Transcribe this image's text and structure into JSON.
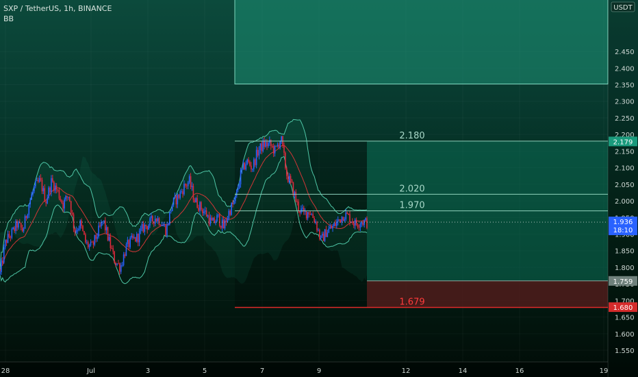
{
  "legend": {
    "symbol_line": "SXP / TetherUS, 1h, BINANCE",
    "indicator": "BB"
  },
  "price_axis": {
    "unit_tag": "USDT",
    "ticks": [
      "2.450",
      "2.400",
      "2.350",
      "2.300",
      "2.250",
      "2.200",
      "2.150",
      "2.100",
      "2.050",
      "2.000",
      "1.950",
      "1.900",
      "1.850",
      "1.800",
      "1.750",
      "1.700",
      "1.650",
      "1.600",
      "1.550"
    ],
    "tick_values": [
      2.45,
      2.4,
      2.35,
      2.3,
      2.25,
      2.2,
      2.15,
      2.1,
      2.05,
      2.0,
      1.95,
      1.9,
      1.85,
      1.8,
      1.75,
      1.7,
      1.65,
      1.6,
      1.55
    ],
    "current_price": "1.936",
    "countdown": "18:10",
    "tag_target": "2.179",
    "tag_entry": "1.759",
    "tag_stop": "1.680"
  },
  "time_axis": {
    "labels": [
      "28",
      "Jul",
      "3",
      "5",
      "7",
      "9",
      "12",
      "14",
      "16",
      "19"
    ]
  },
  "chart_data": {
    "type": "candlestick",
    "ylim": [
      1.515,
      2.605
    ],
    "current_price": 1.936,
    "levels": [
      {
        "label": "2.180",
        "value": 2.18
      },
      {
        "label": "2.020",
        "value": 2.02
      },
      {
        "label": "1.970",
        "value": 1.97
      },
      {
        "label": "1.679",
        "value": 1.679
      }
    ],
    "long_position": {
      "entry": 1.759,
      "target": 2.179,
      "stop": 1.68
    },
    "upper_zone": {
      "from": 2.352,
      "to": 2.605
    },
    "close_path": [
      1.78,
      1.88,
      1.9,
      1.93,
      1.91,
      1.99,
      2.04,
      2.06,
      2.0,
      2.06,
      2.03,
      1.99,
      2.02,
      1.91,
      1.93,
      1.87,
      1.86,
      1.9,
      1.94,
      1.88,
      1.82,
      1.8,
      1.86,
      1.88,
      1.89,
      1.92,
      1.93,
      1.95,
      1.94,
      1.91,
      1.99,
      2.01,
      2.04,
      2.06,
      2.0,
      1.98,
      1.96,
      1.93,
      1.95,
      1.92,
      1.97,
      2.0,
      2.08,
      2.12,
      2.1,
      2.15,
      2.17,
      2.17,
      2.15,
      2.19,
      2.08,
      2.04,
      1.98,
      1.96,
      1.97,
      1.94,
      1.88,
      1.91,
      1.92,
      1.94,
      1.96,
      1.95,
      1.93,
      1.94,
      1.934
    ],
    "colors": {
      "bull": "#2962ff",
      "bear": "#e0283c",
      "bb_band": "#4fc7a7",
      "bb_basis": "#d13636"
    }
  }
}
